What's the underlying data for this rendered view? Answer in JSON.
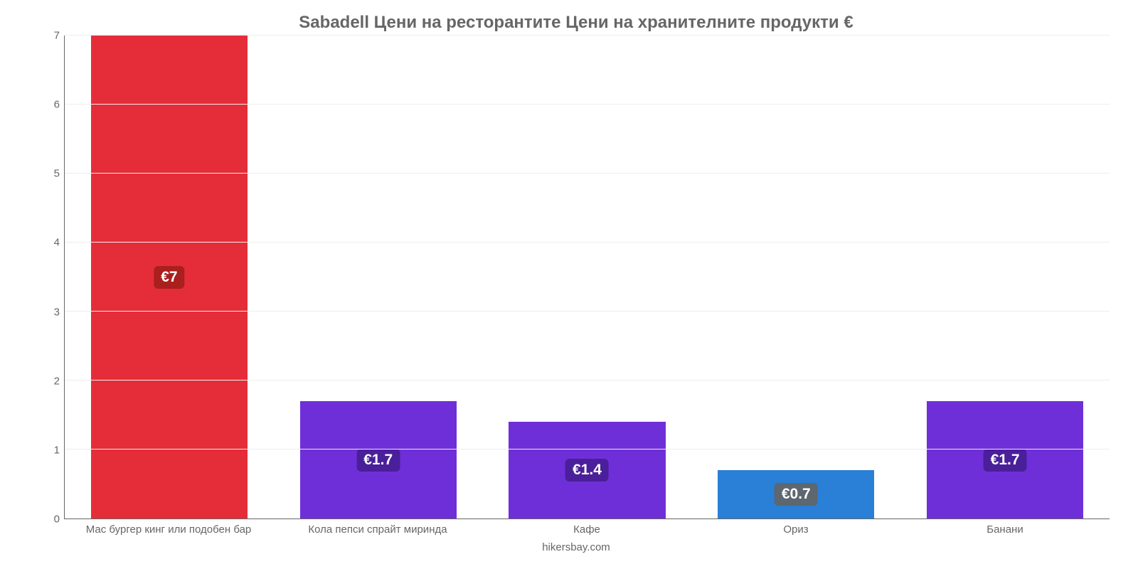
{
  "chart": {
    "type": "bar",
    "title": "Sabadell Цени на ресторантите Цени на хранителните продукти €",
    "title_fontsize": 24,
    "title_color": "#666666",
    "credit": "hikersbay.com",
    "background_color": "#ffffff",
    "grid_color": "#f0ecec",
    "axis_color": "#666666",
    "label_color": "#666666",
    "label_fontsize": 15,
    "value_label_fontsize": 21,
    "value_label_text_color": "#ffffff",
    "ylim": [
      0,
      7
    ],
    "ytick_step": 1,
    "yticks": [
      0,
      1,
      2,
      3,
      4,
      5,
      6,
      7
    ],
    "bar_width_pct": 75,
    "categories": [
      "Мас бургер кинг или подобен бар",
      "Кола пепси спрайт миринда",
      "Кафе",
      "Ориз",
      "Банани"
    ],
    "values": [
      7,
      1.7,
      1.4,
      0.7,
      1.7
    ],
    "value_labels": [
      "€7",
      "€1.7",
      "€1.4",
      "€0.7",
      "€1.7"
    ],
    "bar_colors": [
      "#e52d39",
      "#6f2fd8",
      "#6f2fd8",
      "#2a7fd6",
      "#6f2fd8"
    ],
    "value_label_bg": [
      "#a9201e",
      "#4a1f9a",
      "#4a1f9a",
      "#5c6770",
      "#4a1f9a"
    ]
  }
}
